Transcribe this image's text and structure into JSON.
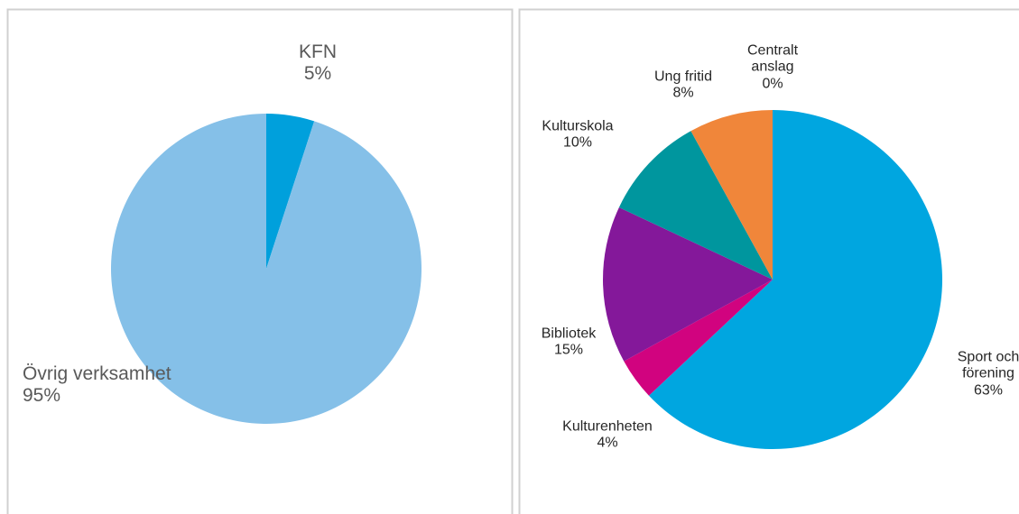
{
  "chart_data": [
    {
      "type": "pie",
      "categories": [
        "KFN",
        "Övrig verksamhet"
      ],
      "values": [
        5,
        95
      ],
      "value_labels": [
        "5%",
        "95%"
      ],
      "colors": [
        "#00a0dc",
        "#85c0e8"
      ]
    },
    {
      "type": "pie",
      "categories": [
        "Sport och förening",
        "Kulturenheten",
        "Bibliotek",
        "Kulturskola",
        "Ung fritid",
        "Centralt anslag"
      ],
      "values": [
        63,
        4,
        15,
        10,
        8,
        0
      ],
      "value_labels": [
        "63%",
        "4%",
        "15%",
        "10%",
        "8%",
        "0%"
      ],
      "colors": [
        "#00a6e0",
        "#d1037f",
        "#84189a",
        "#00969e",
        "#f0863a",
        "#7f7f7f"
      ]
    }
  ]
}
